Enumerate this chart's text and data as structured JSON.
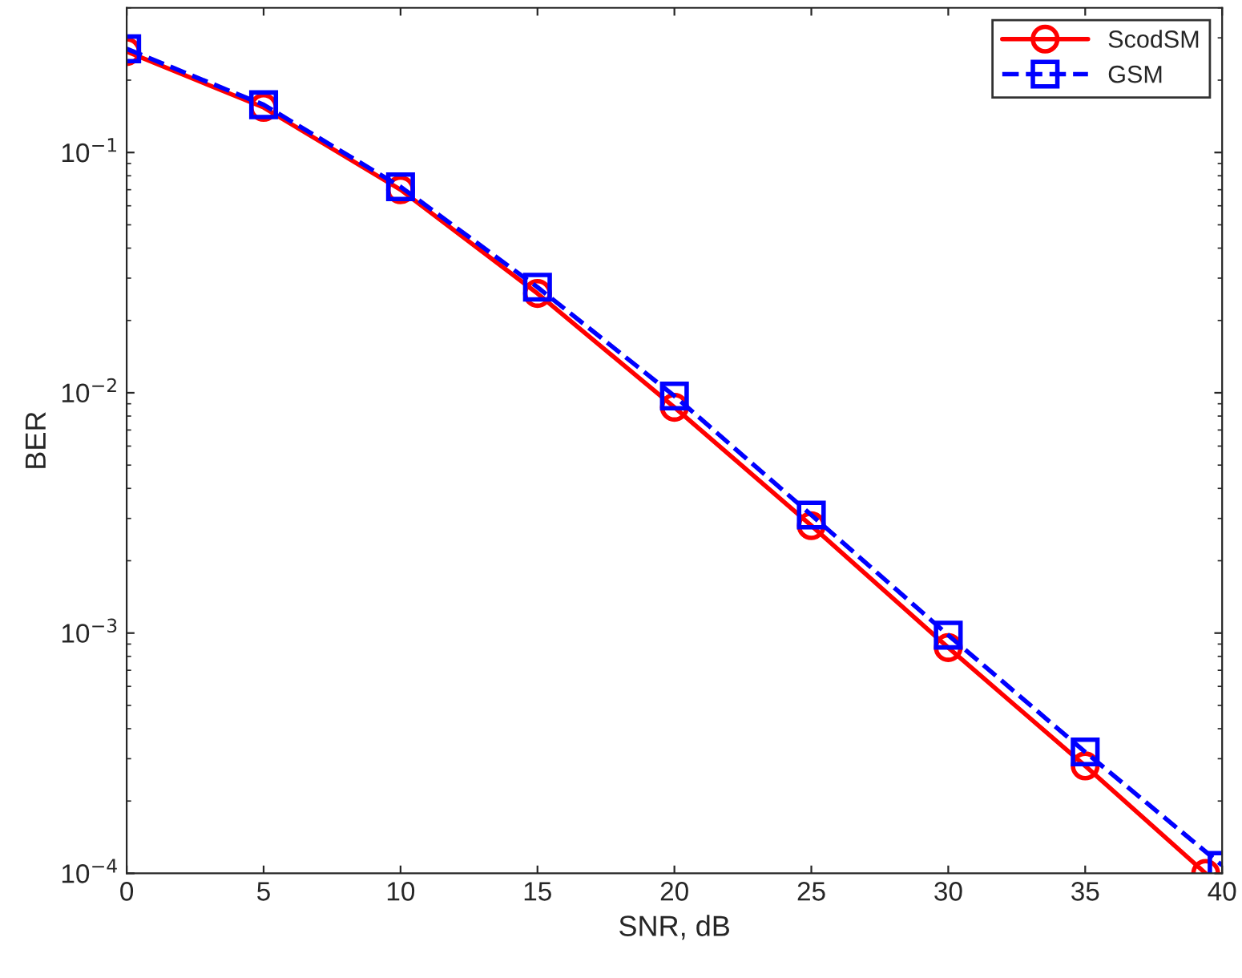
{
  "chart_data": {
    "type": "line",
    "xlabel": "SNR, dB",
    "ylabel": "BER",
    "x": [
      0,
      5,
      10,
      15,
      20,
      25,
      30,
      35,
      40
    ],
    "series": [
      {
        "name": "ScodSM",
        "color": "#ff0000",
        "marker": "circle",
        "line_style": "solid",
        "x": [
          0,
          5,
          10,
          15,
          20,
          25,
          30,
          35,
          39.4
        ],
        "values": [
          0.263,
          0.154,
          0.07,
          0.0259,
          0.0087,
          0.0028,
          0.00087,
          0.00028,
          0.0001
        ]
      },
      {
        "name": "GSM",
        "color": "#0000ff",
        "marker": "square",
        "line_style": "dashed",
        "values": [
          0.27,
          0.158,
          0.072,
          0.0275,
          0.0097,
          0.0031,
          0.00098,
          0.00032,
          0.000108
        ]
      }
    ],
    "log": "y",
    "xlim": [
      0,
      40
    ],
    "ylim": [
      0.0001,
      0.4
    ],
    "xticks": [
      0,
      5,
      10,
      15,
      20,
      25,
      30,
      35,
      40
    ],
    "yticks": [
      {
        "value": 0.0001,
        "label": "10$^{−4}$"
      },
      {
        "value": 0.001,
        "label": "10$^{−3}$"
      },
      {
        "value": 0.01,
        "label": "10$^{−2}$"
      },
      {
        "value": 0.1,
        "label": "10$^{−1}$"
      }
    ],
    "grid": false,
    "legend": "top right"
  }
}
